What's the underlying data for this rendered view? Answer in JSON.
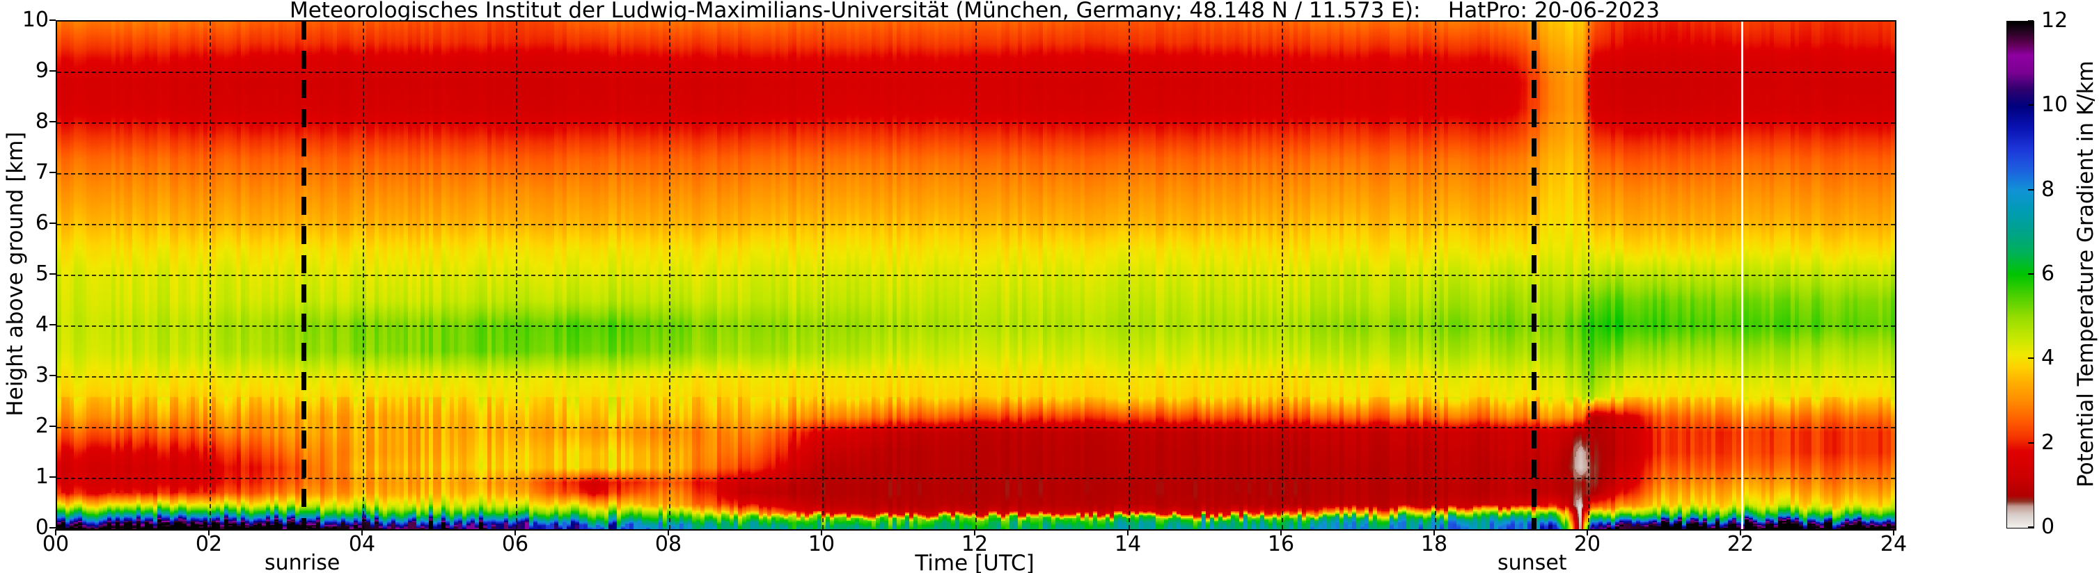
{
  "title": "Meteorologisches Institut der Ludwig-Maximilians-Universität (München, Germany; 48.148 N / 11.573 E):    HatPro: 20-06-2023",
  "axes": {
    "x": {
      "label": "Time [UTC]",
      "tick_labels": [
        "00",
        "02",
        "04",
        "06",
        "08",
        "10",
        "12",
        "14",
        "16",
        "18",
        "20",
        "22",
        "24"
      ],
      "tick_hours": [
        0,
        2,
        4,
        6,
        8,
        10,
        12,
        14,
        16,
        18,
        20,
        22,
        24
      ],
      "range_hours": [
        0,
        24
      ]
    },
    "y": {
      "label": "Height above ground [km]",
      "tick_labels": [
        "0",
        "1",
        "2",
        "3",
        "4",
        "5",
        "6",
        "7",
        "8",
        "9",
        "10"
      ],
      "tick_km": [
        0,
        1,
        2,
        3,
        4,
        5,
        6,
        7,
        8,
        9,
        10
      ],
      "range_km": [
        0,
        10
      ]
    },
    "colorbar": {
      "label": "Potential Temperature Gradient in K/km",
      "tick_labels": [
        "0",
        "2",
        "4",
        "6",
        "8",
        "10",
        "12"
      ],
      "tick_values": [
        0,
        2,
        4,
        6,
        8,
        10,
        12
      ],
      "range": [
        0,
        12
      ]
    }
  },
  "annotations": {
    "sunrise_label": "sunrise",
    "sunset_label": "sunset",
    "sunrise_hour_utc": 3.22,
    "sunset_hour_utc": 19.28,
    "data_gap_hour_utc": 22.0
  },
  "chart_data": {
    "type": "heatmap",
    "title": "Meteorologisches Institut der Ludwig-Maximilians-Universität (München, Germany; 48.148 N / 11.573 E):    HatPro: 20-06-2023",
    "xlabel": "Time [UTC]",
    "ylabel": "Height above ground [km]",
    "colorbar_label": "Potential Temperature Gradient in K/km",
    "xlim_hours": [
      0,
      24
    ],
    "ylim_km": [
      0,
      10
    ],
    "value_range_K_per_km": [
      0,
      12
    ],
    "grid": "dashed black at every 2 h and every 1 km",
    "legend_position": "right colorbar",
    "x_hours": [
      0,
      1,
      2,
      3,
      4,
      5,
      6,
      7,
      8,
      9,
      10,
      11,
      12,
      13,
      14,
      15,
      16,
      17,
      18,
      19,
      19.6,
      19.9,
      20.05,
      20.3,
      21,
      22,
      23,
      24
    ],
    "heights_km": [
      0.05,
      0.12,
      0.2,
      0.3,
      0.45,
      0.7,
      0.9,
      1.2,
      1.5,
      1.9,
      2.2,
      2.6,
      3.0,
      3.5,
      4.0,
      4.5,
      5.0,
      5.5,
      6.0,
      6.7,
      7.3,
      7.8,
      8.3,
      8.8,
      9.3,
      9.6,
      10.0
    ],
    "values_K_per_km": [
      [
        12,
        12,
        12,
        12,
        11.8,
        11.4,
        10.4,
        9.2,
        7.8,
        6.8,
        6.5,
        6.5,
        6.5,
        6.6,
        6.8,
        7.0,
        7.2,
        7.6,
        7.8,
        8.2,
        9.0,
        0.08,
        10.0,
        11.5,
        12,
        12,
        12,
        12
      ],
      [
        10.8,
        11.0,
        10.7,
        10.5,
        10.2,
        9.6,
        8.8,
        7.6,
        6.6,
        5.9,
        5.7,
        5.8,
        6.0,
        6.0,
        6.2,
        6.4,
        6.6,
        7.0,
        7.4,
        7.8,
        8.0,
        0.08,
        9.0,
        10.0,
        10.2,
        10.6,
        10.4,
        10.5
      ],
      [
        8.6,
        8.8,
        8.5,
        8.3,
        8.1,
        7.8,
        7.2,
        6.5,
        6.0,
        5.3,
        5.2,
        5.4,
        5.5,
        5.5,
        5.6,
        5.7,
        5.9,
        6.3,
        6.7,
        6.9,
        6.5,
        0.08,
        7.0,
        7.5,
        7.2,
        7.6,
        7.4,
        7.5
      ],
      [
        6.6,
        6.7,
        6.5,
        6.4,
        6.2,
        6.0,
        5.6,
        5.3,
        5.0,
        3.2,
        1.6,
        1.4,
        1.4,
        1.4,
        1.5,
        1.6,
        2.2,
        3.6,
        4.6,
        5.2,
        5.5,
        0.08,
        5.5,
        5.0,
        5.6,
        5.9,
        5.7,
        5.8
      ],
      [
        4.3,
        4.4,
        4.3,
        4.4,
        4.5,
        4.5,
        4.3,
        3.9,
        3.4,
        1.8,
        1.0,
        0.9,
        0.9,
        0.9,
        0.9,
        0.9,
        0.9,
        1.0,
        1.1,
        1.3,
        2.0,
        0.08,
        2.5,
        2.8,
        4.1,
        4.2,
        4.1,
        4.2
      ],
      [
        2.0,
        1.9,
        2.1,
        2.9,
        3.4,
        3.6,
        3.4,
        1.8,
        3.0,
        1.0,
        0.8,
        0.8,
        0.8,
        0.8,
        0.8,
        0.8,
        0.8,
        0.9,
        0.9,
        1.0,
        1.0,
        0.6,
        0.7,
        1.4,
        3.5,
        3.6,
        3.4,
        3.5
      ],
      [
        1.6,
        1.5,
        1.7,
        2.5,
        3.2,
        3.4,
        3.1,
        1.5,
        2.5,
        1.2,
        0.8,
        0.8,
        0.8,
        0.8,
        0.8,
        0.8,
        0.8,
        0.9,
        0.9,
        1.0,
        0.9,
        0.7,
        0.6,
        1.0,
        3.1,
        3.2,
        3.0,
        3.1
      ],
      [
        1.5,
        1.4,
        1.6,
        2.3,
        3.5,
        3.7,
        3.8,
        3.8,
        3.5,
        2.2,
        0.9,
        0.9,
        0.9,
        0.9,
        0.9,
        0.9,
        0.9,
        0.9,
        1.0,
        1.0,
        1.0,
        0.3,
        0.6,
        0.9,
        2.7,
        2.6,
        2.6,
        2.7
      ],
      [
        1.8,
        1.7,
        1.9,
        2.7,
        3.3,
        3.5,
        3.7,
        3.8,
        3.4,
        2.6,
        1.1,
        0.9,
        0.9,
        0.9,
        0.9,
        0.9,
        0.9,
        1.0,
        1.0,
        1.1,
        1.1,
        0.35,
        0.7,
        0.8,
        2.3,
        2.3,
        2.2,
        2.3
      ],
      [
        2.6,
        2.5,
        2.7,
        3.2,
        3.4,
        3.4,
        3.4,
        3.3,
        3.0,
        3.0,
        1.6,
        1.1,
        1.0,
        1.0,
        1.0,
        1.0,
        1.1,
        1.1,
        1.2,
        1.2,
        1.3,
        0.8,
        0.8,
        0.9,
        2.3,
        2.2,
        2.2,
        2.3
      ],
      [
        3.2,
        3.2,
        3.2,
        3.3,
        3.4,
        3.5,
        3.6,
        3.7,
        3.6,
        3.4,
        2.9,
        2.6,
        2.3,
        2.2,
        2.2,
        2.3,
        2.4,
        2.5,
        2.6,
        2.8,
        3.0,
        3.0,
        0.9,
        1.2,
        2.7,
        2.9,
        2.8,
        2.9
      ],
      [
        3.8,
        3.8,
        3.8,
        3.9,
        3.9,
        3.9,
        4.0,
        4.0,
        3.9,
        3.8,
        3.8,
        3.8,
        3.8,
        3.8,
        3.8,
        3.8,
        3.8,
        3.9,
        3.9,
        4.0,
        4.0,
        4.4,
        4.8,
        4.0,
        4.0,
        4.0,
        4.0,
        4.0
      ],
      [
        4.1,
        4.1,
        4.1,
        4.2,
        4.2,
        4.2,
        4.2,
        4.2,
        4.1,
        4.0,
        4.0,
        4.0,
        4.0,
        4.0,
        4.0,
        4.0,
        4.0,
        4.1,
        4.1,
        4.2,
        4.2,
        4.8,
        5.2,
        4.5,
        4.3,
        4.3,
        4.3,
        4.3
      ],
      [
        4.4,
        4.5,
        4.6,
        4.9,
        5.1,
        5.2,
        5.3,
        5.3,
        5.1,
        4.8,
        4.7,
        4.5,
        4.4,
        4.4,
        4.4,
        4.4,
        4.5,
        4.6,
        4.7,
        4.8,
        4.7,
        5.2,
        5.5,
        5.2,
        5.0,
        4.9,
        4.8,
        4.8
      ],
      [
        4.5,
        4.6,
        4.7,
        5.0,
        5.2,
        5.2,
        5.4,
        5.5,
        5.3,
        5.0,
        4.9,
        4.8,
        4.7,
        4.7,
        4.7,
        4.7,
        4.8,
        5.0,
        5.1,
        5.2,
        5.0,
        5.5,
        5.8,
        5.8,
        5.7,
        5.5,
        5.5,
        5.4
      ],
      [
        4.4,
        4.4,
        4.4,
        4.5,
        4.5,
        4.5,
        4.6,
        4.6,
        4.6,
        4.5,
        4.5,
        4.5,
        4.5,
        4.5,
        4.5,
        4.5,
        4.5,
        4.6,
        4.7,
        4.9,
        4.7,
        5.0,
        5.3,
        5.4,
        5.4,
        5.2,
        5.2,
        5.2
      ],
      [
        4.3,
        4.3,
        4.3,
        4.3,
        4.3,
        4.3,
        4.3,
        4.3,
        4.3,
        4.3,
        4.3,
        4.3,
        4.3,
        4.3,
        4.3,
        4.3,
        4.3,
        4.4,
        4.4,
        4.5,
        4.4,
        4.5,
        4.6,
        4.7,
        4.7,
        4.6,
        4.6,
        4.6
      ],
      [
        4.0,
        4.0,
        4.0,
        4.0,
        4.0,
        4.0,
        4.0,
        4.0,
        4.0,
        4.0,
        4.0,
        4.0,
        4.0,
        4.0,
        4.0,
        4.0,
        4.0,
        4.0,
        4.0,
        4.0,
        4.1,
        4.2,
        4.1,
        4.0,
        4.0,
        4.0,
        4.0,
        4.0
      ],
      [
        3.6,
        3.6,
        3.5,
        3.5,
        3.5,
        3.5,
        3.5,
        3.5,
        3.5,
        3.5,
        3.6,
        3.6,
        3.6,
        3.5,
        3.5,
        3.5,
        3.6,
        3.6,
        3.6,
        3.6,
        3.9,
        4.0,
        3.6,
        3.5,
        3.5,
        3.5,
        3.5,
        3.5
      ],
      [
        3.1,
        3.1,
        3.0,
        3.0,
        3.0,
        3.0,
        3.0,
        3.0,
        3.0,
        3.0,
        3.1,
        3.1,
        3.1,
        3.0,
        3.0,
        3.0,
        3.1,
        3.1,
        3.1,
        3.1,
        3.7,
        3.8,
        3.1,
        3.0,
        3.0,
        3.0,
        3.0,
        3.0
      ],
      [
        2.7,
        2.7,
        2.6,
        2.6,
        2.6,
        2.6,
        2.5,
        2.6,
        2.6,
        2.6,
        2.7,
        2.7,
        2.7,
        2.6,
        2.6,
        2.6,
        2.7,
        2.7,
        2.7,
        2.7,
        3.5,
        3.6,
        2.7,
        2.5,
        2.5,
        2.6,
        2.6,
        2.6
      ],
      [
        2.1,
        2.1,
        2.0,
        2.0,
        2.0,
        2.0,
        1.9,
        2.0,
        2.0,
        2.0,
        2.1,
        2.1,
        2.1,
        2.0,
        2.0,
        2.0,
        2.1,
        2.1,
        2.1,
        2.1,
        3.2,
        3.4,
        2.1,
        1.9,
        1.9,
        2.0,
        2.0,
        2.0
      ],
      [
        1.6,
        1.6,
        1.5,
        1.5,
        1.5,
        1.5,
        1.4,
        1.5,
        1.5,
        1.5,
        1.6,
        1.6,
        1.6,
        1.5,
        1.5,
        1.5,
        1.6,
        1.6,
        1.6,
        1.6,
        3.0,
        3.2,
        1.6,
        1.4,
        1.4,
        1.5,
        1.5,
        1.5
      ],
      [
        1.5,
        1.5,
        1.4,
        1.4,
        1.4,
        1.4,
        1.3,
        1.4,
        1.4,
        1.4,
        1.5,
        1.5,
        1.5,
        1.4,
        1.4,
        1.4,
        1.5,
        1.5,
        1.5,
        1.5,
        3.0,
        3.2,
        1.5,
        1.3,
        1.3,
        1.4,
        1.4,
        1.4
      ],
      [
        1.9,
        1.9,
        1.8,
        1.7,
        1.7,
        1.7,
        1.6,
        1.7,
        1.8,
        1.8,
        1.8,
        1.8,
        1.8,
        1.7,
        1.7,
        1.7,
        1.8,
        1.8,
        1.8,
        1.9,
        3.2,
        3.4,
        1.8,
        1.6,
        1.5,
        1.6,
        1.6,
        1.7
      ],
      [
        2.3,
        2.3,
        2.2,
        2.1,
        2.1,
        2.1,
        2.0,
        2.1,
        2.2,
        2.2,
        2.2,
        2.2,
        2.2,
        2.1,
        2.1,
        2.1,
        2.2,
        2.2,
        2.2,
        2.3,
        3.4,
        3.6,
        2.2,
        1.9,
        1.8,
        1.9,
        1.9,
        2.0
      ],
      [
        2.8,
        2.8,
        2.7,
        2.5,
        2.5,
        2.4,
        2.2,
        2.6,
        2.7,
        2.7,
        2.6,
        2.6,
        2.6,
        2.5,
        2.4,
        2.4,
        2.6,
        2.7,
        2.7,
        2.8,
        3.6,
        3.8,
        2.6,
        2.1,
        2.0,
        2.2,
        2.1,
        2.2
      ]
    ],
    "colormap_stops": [
      [
        0.0,
        "#f2efec"
      ],
      [
        0.3,
        "#d9cfca"
      ],
      [
        0.5,
        "#c39b93"
      ],
      [
        0.62,
        "#8e3021"
      ],
      [
        0.75,
        "#b00000"
      ],
      [
        1.2,
        "#cc0000"
      ],
      [
        1.8,
        "#e00000"
      ],
      [
        2.1,
        "#f33000"
      ],
      [
        2.5,
        "#ff5a00"
      ],
      [
        3.0,
        "#ff8c00"
      ],
      [
        3.5,
        "#ffb400"
      ],
      [
        3.8,
        "#ffd200"
      ],
      [
        4.1,
        "#f0e800"
      ],
      [
        4.5,
        "#c6e800"
      ],
      [
        5.0,
        "#95dc00"
      ],
      [
        5.5,
        "#4bd000"
      ],
      [
        6.0,
        "#00c400"
      ],
      [
        6.5,
        "#00b257"
      ],
      [
        7.0,
        "#00a38a"
      ],
      [
        7.5,
        "#009cb4"
      ],
      [
        8.0,
        "#1193d6"
      ],
      [
        8.5,
        "#1d5fe0"
      ],
      [
        9.0,
        "#1c35d8"
      ],
      [
        9.5,
        "#0912b2"
      ],
      [
        10.0,
        "#00007e"
      ],
      [
        10.4,
        "#2f006e"
      ],
      [
        10.8,
        "#7b0092"
      ],
      [
        11.2,
        "#8f00a2"
      ],
      [
        11.5,
        "#5a004e"
      ],
      [
        11.8,
        "#1e041c"
      ],
      [
        12.0,
        "#000000"
      ]
    ],
    "gridlines": {
      "x_hours": [
        2,
        4,
        6,
        8,
        10,
        12,
        14,
        16,
        18,
        20,
        22
      ],
      "y_km": [
        1,
        2,
        3,
        4,
        5,
        6,
        7,
        8,
        9
      ],
      "style": "dashed"
    },
    "vertical_lines": [
      {
        "name": "sunrise",
        "hour": 3.22,
        "style": "thick dashed black"
      },
      {
        "name": "sunset",
        "hour": 19.28,
        "style": "thick dashed black"
      },
      {
        "name": "data-gap",
        "hour": 22.0,
        "style": "solid white"
      }
    ]
  }
}
